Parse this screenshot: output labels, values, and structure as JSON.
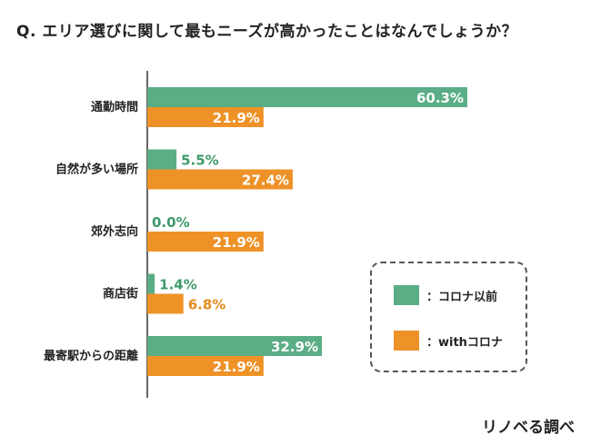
{
  "title": "Q. エリア選びに関して最もニーズが高かったことはなんでしょうか？",
  "source": "リノベる調べ",
  "colors": {
    "before": "#5BAD85",
    "after": "#EE9228",
    "before_text": "#3E9A6A",
    "after_text": "#E58A1E",
    "axis": "#333333"
  },
  "legend": [
    {
      "label": "：コロナ以前",
      "color": "#5BAD85"
    },
    {
      "label": "：withコロナ",
      "color": "#EE9228"
    }
  ],
  "chart_data": {
    "type": "bar",
    "orientation": "horizontal",
    "title": "Q. エリア選びに関して最もニーズが高かったことはなんでしょうか？",
    "categories": [
      "通勤時間",
      "自然が多い場所",
      "郊外志向",
      "商店街",
      "最寄駅からの距離"
    ],
    "series": [
      {
        "name": "コロナ以前",
        "values": [
          60.3,
          5.5,
          0.0,
          1.4,
          32.9
        ],
        "labels": [
          "60.3%",
          "5.5%",
          "0.0%",
          "1.4%",
          "32.9%"
        ]
      },
      {
        "name": "withコロナ",
        "values": [
          21.9,
          27.4,
          21.9,
          6.8,
          21.9
        ],
        "labels": [
          "21.9%",
          "27.4%",
          "21.9%",
          "6.8%",
          "21.9%"
        ]
      }
    ],
    "xlim": [
      0,
      60.3
    ],
    "xlabel": "",
    "ylabel": ""
  }
}
